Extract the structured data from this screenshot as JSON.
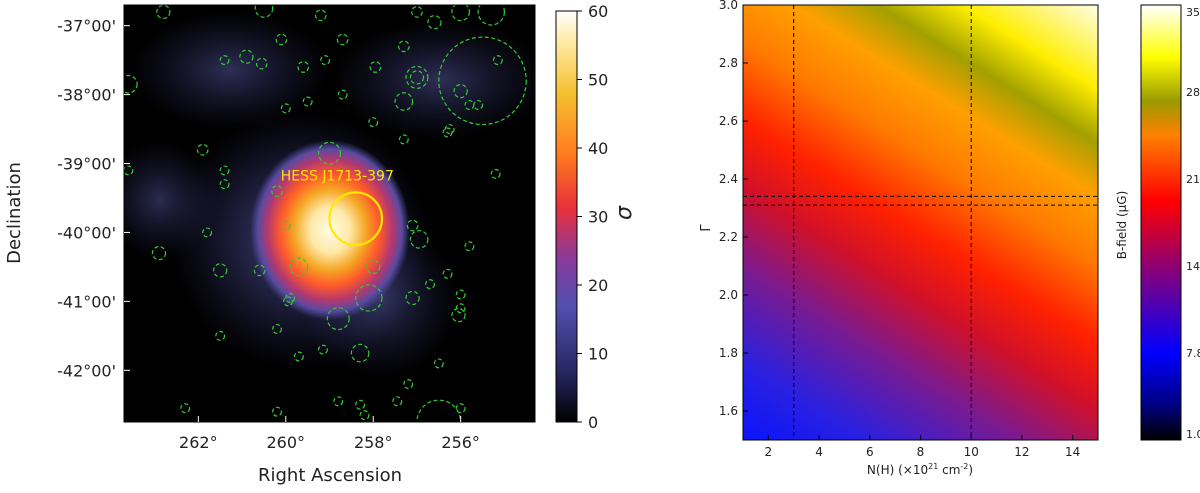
{
  "chart_data": [
    {
      "type": "heatmap",
      "xlabel": "Right Ascension",
      "ylabel": "Declination",
      "xticks": [
        "262°",
        "260°",
        "258°",
        "256°"
      ],
      "xtick_values": [
        262,
        260,
        258,
        256
      ],
      "xlim": [
        263.7,
        254.3
      ],
      "yticks": [
        "-37°00'",
        "-38°00'",
        "-39°00'",
        "-40°00'",
        "-41°00'",
        "-42°00'"
      ],
      "ytick_values": [
        -37,
        -38,
        -39,
        -40,
        -41,
        -42
      ],
      "ylim": [
        -42.75,
        -36.7
      ],
      "colorbar": {
        "label": "σ",
        "ticks": [
          "0",
          "10",
          "20",
          "30",
          "40",
          "50",
          "60"
        ],
        "range": [
          0,
          60
        ]
      },
      "source": {
        "label": "HESS J1713-397",
        "ra": 258.4,
        "dec": -39.8,
        "peak_sigma": 60,
        "radius_deg": 0.6
      },
      "circle_color": "#33cc33",
      "source_color": "#ffea00",
      "candidates": [
        {
          "ra": 262.8,
          "dec": -36.8,
          "r": 0.15
        },
        {
          "ra": 260.5,
          "dec": -36.75,
          "r": 0.2
        },
        {
          "ra": 259.2,
          "dec": -36.85,
          "r": 0.12
        },
        {
          "ra": 257.0,
          "dec": -36.8,
          "r": 0.12
        },
        {
          "ra": 256.6,
          "dec": -36.95,
          "r": 0.15
        },
        {
          "ra": 256.0,
          "dec": -36.8,
          "r": 0.2
        },
        {
          "ra": 255.5,
          "dec": -37.8,
          "r": 1.0
        },
        {
          "ra": 255.3,
          "dec": -36.8,
          "r": 0.3
        },
        {
          "ra": 260.1,
          "dec": -37.2,
          "r": 0.12
        },
        {
          "ra": 258.7,
          "dec": -37.2,
          "r": 0.12
        },
        {
          "ra": 257.3,
          "dec": -37.3,
          "r": 0.12
        },
        {
          "ra": 261.4,
          "dec": -37.5,
          "r": 0.1
        },
        {
          "ra": 260.9,
          "dec": -37.45,
          "r": 0.15
        },
        {
          "ra": 260.55,
          "dec": -37.55,
          "r": 0.12
        },
        {
          "ra": 259.6,
          "dec": -37.6,
          "r": 0.12
        },
        {
          "ra": 259.1,
          "dec": -37.5,
          "r": 0.1
        },
        {
          "ra": 257.95,
          "dec": -37.6,
          "r": 0.12
        },
        {
          "ra": 257.0,
          "dec": -37.75,
          "r": 0.25
        },
        {
          "ra": 257.0,
          "dec": -37.75,
          "r": 0.15
        },
        {
          "ra": 255.15,
          "dec": -37.5,
          "r": 0.1
        },
        {
          "ra": 263.6,
          "dec": -37.85,
          "r": 0.2
        },
        {
          "ra": 259.5,
          "dec": -38.1,
          "r": 0.1
        },
        {
          "ra": 258.7,
          "dec": -38.0,
          "r": 0.1
        },
        {
          "ra": 256.0,
          "dec": -37.95,
          "r": 0.15
        },
        {
          "ra": 255.6,
          "dec": -38.15,
          "r": 0.1
        },
        {
          "ra": 255.8,
          "dec": -38.15,
          "r": 0.1
        },
        {
          "ra": 257.3,
          "dec": -38.1,
          "r": 0.2
        },
        {
          "ra": 260.0,
          "dec": -38.2,
          "r": 0.1
        },
        {
          "ra": 258.0,
          "dec": -38.4,
          "r": 0.1
        },
        {
          "ra": 256.3,
          "dec": -38.55,
          "r": 0.1
        },
        {
          "ra": 256.25,
          "dec": -38.5,
          "r": 0.1
        },
        {
          "ra": 257.3,
          "dec": -38.65,
          "r": 0.1
        },
        {
          "ra": 259.0,
          "dec": -38.85,
          "r": 0.25
        },
        {
          "ra": 261.9,
          "dec": -38.8,
          "r": 0.12
        },
        {
          "ra": 261.4,
          "dec": -39.1,
          "r": 0.1
        },
        {
          "ra": 261.4,
          "dec": -39.3,
          "r": 0.1
        },
        {
          "ra": 263.6,
          "dec": -39.1,
          "r": 0.1
        },
        {
          "ra": 260.2,
          "dec": -39.4,
          "r": 0.12
        },
        {
          "ra": 260.0,
          "dec": -39.9,
          "r": 0.1
        },
        {
          "ra": 261.8,
          "dec": -40.0,
          "r": 0.1
        },
        {
          "ra": 257.1,
          "dec": -39.9,
          "r": 0.12
        },
        {
          "ra": 256.95,
          "dec": -40.1,
          "r": 0.2
        },
        {
          "ra": 255.2,
          "dec": -39.15,
          "r": 0.1
        },
        {
          "ra": 255.8,
          "dec": -40.2,
          "r": 0.1
        },
        {
          "ra": 262.9,
          "dec": -40.3,
          "r": 0.15
        },
        {
          "ra": 261.5,
          "dec": -40.55,
          "r": 0.15
        },
        {
          "ra": 260.6,
          "dec": -40.55,
          "r": 0.12
        },
        {
          "ra": 259.7,
          "dec": -40.5,
          "r": 0.2
        },
        {
          "ra": 258.0,
          "dec": -40.5,
          "r": 0.15
        },
        {
          "ra": 256.3,
          "dec": -40.6,
          "r": 0.1
        },
        {
          "ra": 258.1,
          "dec": -40.95,
          "r": 0.3
        },
        {
          "ra": 259.9,
          "dec": -40.95,
          "r": 0.1
        },
        {
          "ra": 259.95,
          "dec": -41.0,
          "r": 0.1
        },
        {
          "ra": 257.1,
          "dec": -40.95,
          "r": 0.15
        },
        {
          "ra": 258.8,
          "dec": -41.25,
          "r": 0.25
        },
        {
          "ra": 256.7,
          "dec": -40.75,
          "r": 0.1
        },
        {
          "ra": 256.05,
          "dec": -41.2,
          "r": 0.15
        },
        {
          "ra": 256.0,
          "dec": -41.1,
          "r": 0.1
        },
        {
          "ra": 256.0,
          "dec": -40.9,
          "r": 0.1
        },
        {
          "ra": 261.5,
          "dec": -41.5,
          "r": 0.1
        },
        {
          "ra": 260.2,
          "dec": -41.4,
          "r": 0.1
        },
        {
          "ra": 259.15,
          "dec": -41.7,
          "r": 0.1
        },
        {
          "ra": 258.3,
          "dec": -41.75,
          "r": 0.2
        },
        {
          "ra": 259.7,
          "dec": -41.8,
          "r": 0.1
        },
        {
          "ra": 257.2,
          "dec": -42.2,
          "r": 0.1
        },
        {
          "ra": 256.5,
          "dec": -41.9,
          "r": 0.1
        },
        {
          "ra": 262.3,
          "dec": -42.55,
          "r": 0.1
        },
        {
          "ra": 260.2,
          "dec": -42.6,
          "r": 0.1
        },
        {
          "ra": 258.8,
          "dec": -42.45,
          "r": 0.1
        },
        {
          "ra": 258.3,
          "dec": -42.5,
          "r": 0.1
        },
        {
          "ra": 258.2,
          "dec": -42.65,
          "r": 0.1
        },
        {
          "ra": 257.45,
          "dec": -42.45,
          "r": 0.1
        },
        {
          "ra": 256.0,
          "dec": -42.55,
          "r": 0.1
        },
        {
          "ra": 256.5,
          "dec": -42.75,
          "r": 0.5
        }
      ]
    },
    {
      "type": "heatmap",
      "xlabel": "N(H) (×10",
      "xlabel_sup": "21",
      "xlabel_tail": " cm",
      "xlabel_sup2": "-2",
      "xlabel_end": ")",
      "ylabel": "Γ",
      "xticks": [
        "2",
        "4",
        "6",
        "8",
        "10",
        "12",
        "14"
      ],
      "xtick_values": [
        2,
        4,
        6,
        8,
        10,
        12,
        14
      ],
      "xlim": [
        1,
        15
      ],
      "yticks": [
        "1.6",
        "1.8",
        "2.0",
        "2.2",
        "2.4",
        "2.6",
        "2.8",
        "3.0"
      ],
      "ytick_values": [
        1.6,
        1.8,
        2.0,
        2.2,
        2.4,
        2.6,
        2.8,
        3.0
      ],
      "ylim": [
        1.5,
        3.0
      ],
      "dashed_vlines": [
        3,
        10
      ],
      "dashed_hlines": [
        2.31,
        2.34
      ],
      "colorbar": {
        "label": "B-field (μG)",
        "ticks": [
          "1.0",
          "7.8",
          "14.6",
          "21.4",
          "28.2",
          "35.0"
        ],
        "range": [
          1.0,
          35.0
        ]
      }
    }
  ]
}
